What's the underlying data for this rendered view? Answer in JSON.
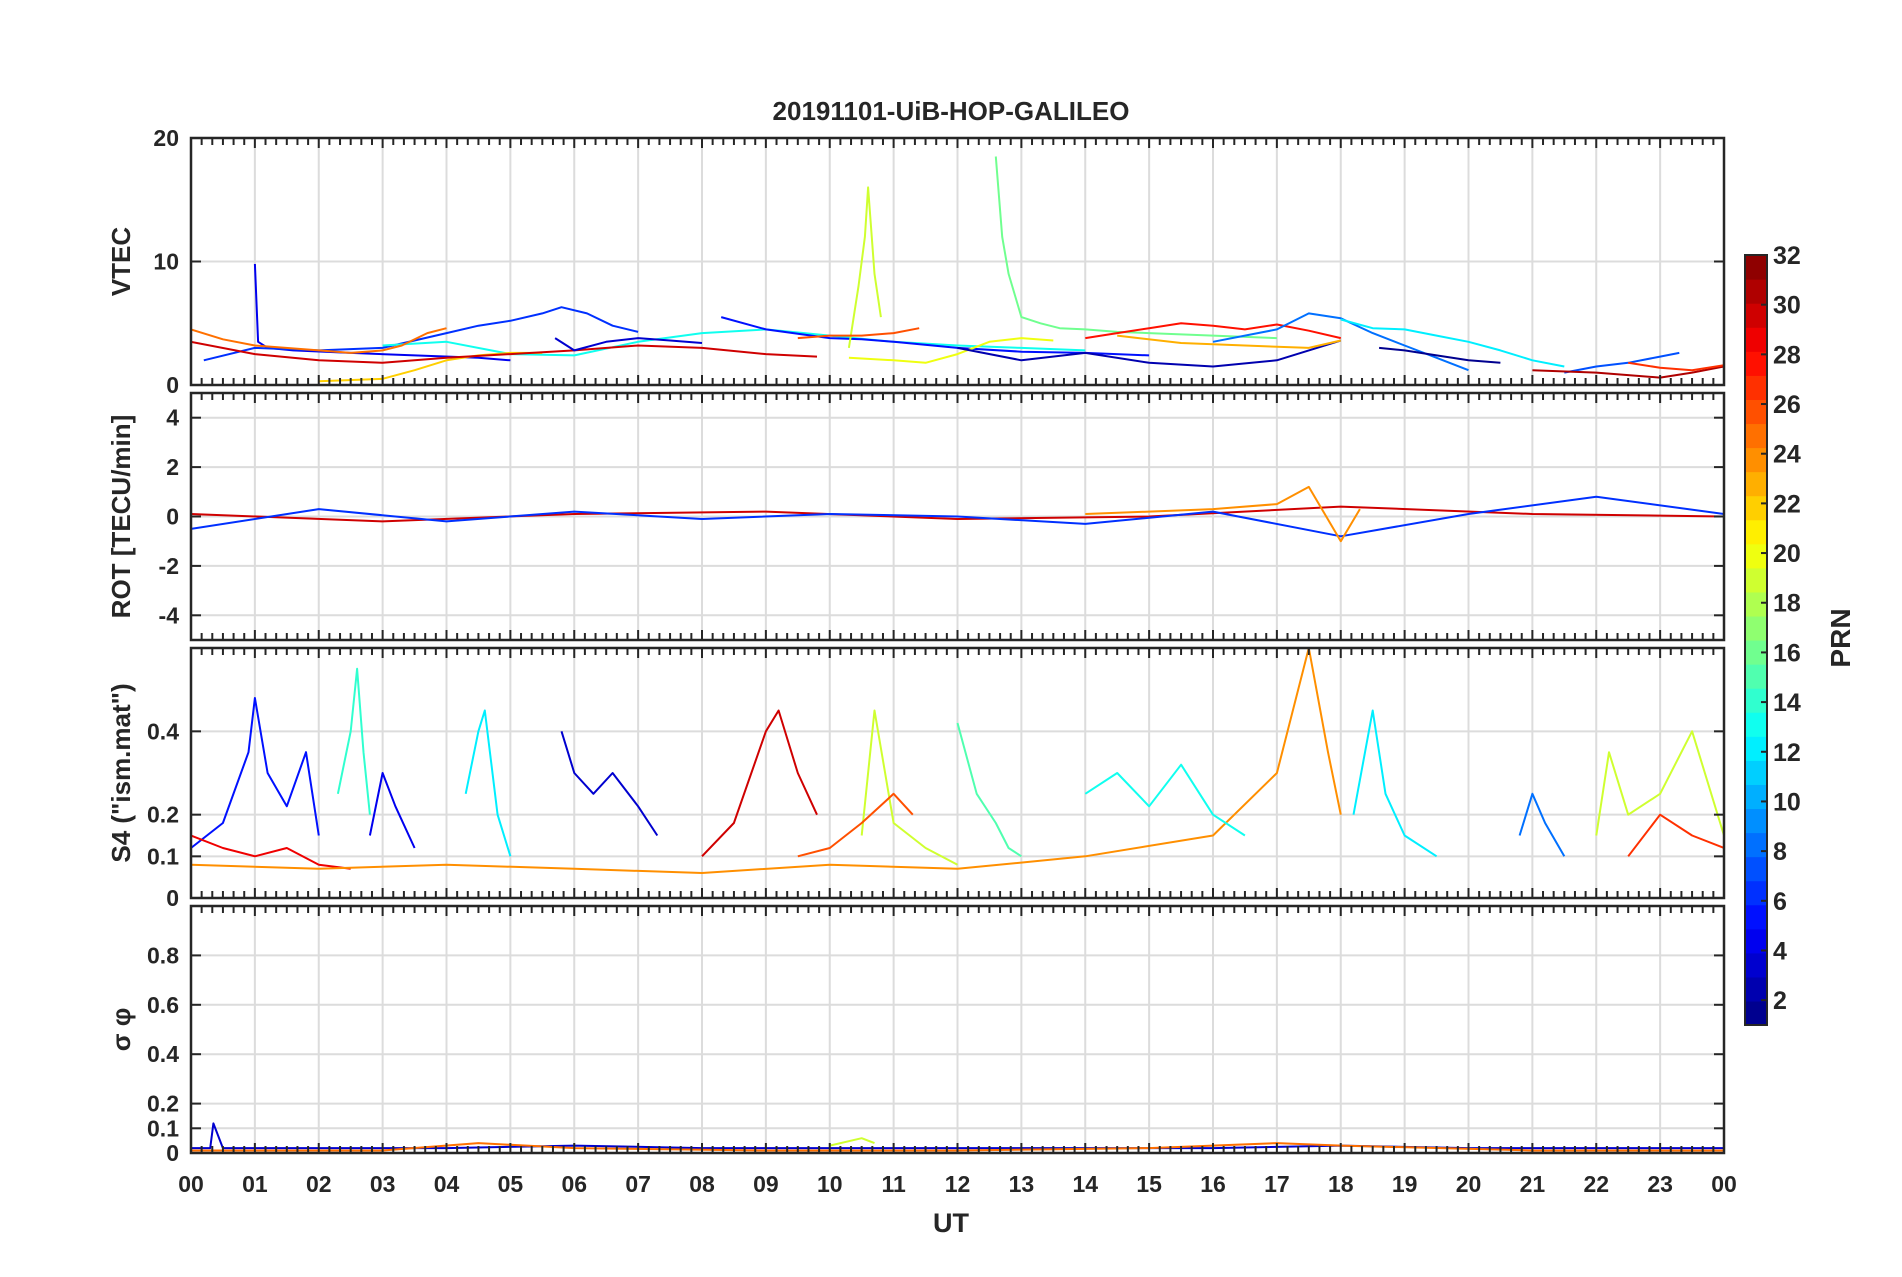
{
  "figure": {
    "title": "20191101-UiB-HOP-GALILEO",
    "xlabel": "UT",
    "x_tick_labels": [
      "00",
      "01",
      "02",
      "03",
      "04",
      "05",
      "06",
      "07",
      "08",
      "09",
      "10",
      "11",
      "12",
      "13",
      "14",
      "15",
      "16",
      "17",
      "18",
      "19",
      "20",
      "21",
      "22",
      "23",
      "00"
    ]
  },
  "colorbar": {
    "label": "PRN",
    "colormap": "jet",
    "range": [
      1,
      32
    ],
    "tick_labels": [
      "2",
      "4",
      "6",
      "8",
      "10",
      "12",
      "14",
      "16",
      "18",
      "20",
      "22",
      "24",
      "26",
      "28",
      "30",
      "32"
    ]
  },
  "chart_data": [
    {
      "type": "line",
      "panel": "VTEC",
      "ylabel": "VTEC",
      "xlim": [
        0,
        24
      ],
      "ylim": [
        0,
        20
      ],
      "y_ticks": [
        0,
        10,
        20
      ],
      "y_tick_labels": [
        "0",
        "10",
        "20"
      ],
      "grid": true,
      "series": [
        {
          "prn": 4,
          "x": [
            1.0,
            1.05,
            1.2,
            1.6,
            2.5,
            3.5,
            4.5,
            5.0
          ],
          "y": [
            9.8,
            3.5,
            3.0,
            2.8,
            2.6,
            2.4,
            2.2,
            2.0
          ]
        },
        {
          "prn": 6,
          "x": [
            0.2,
            1.0,
            2.0,
            3.0,
            4.0,
            4.5,
            5.0,
            5.5,
            5.8,
            6.2,
            6.6,
            7.0
          ],
          "y": [
            2.0,
            3.0,
            2.8,
            3.0,
            4.2,
            4.8,
            5.2,
            5.8,
            6.3,
            5.8,
            4.8,
            4.3
          ]
        },
        {
          "prn": 13,
          "x": [
            3.0,
            4.0,
            5.0,
            6.0,
            7.0,
            8.0,
            9.0,
            10.0,
            11.0,
            12.0,
            13.0,
            14.0
          ],
          "y": [
            3.2,
            3.5,
            2.5,
            2.4,
            3.5,
            4.2,
            4.5,
            4.0,
            3.5,
            3.2,
            3.0,
            2.8
          ]
        },
        {
          "prn": 25,
          "x": [
            0.0,
            0.5,
            1.0,
            2.0,
            2.5,
            3.0,
            3.3,
            3.7,
            4.0
          ],
          "y": [
            4.5,
            3.7,
            3.2,
            2.8,
            2.6,
            2.8,
            3.2,
            4.2,
            4.6
          ]
        },
        {
          "prn": 22,
          "x": [
            2.0,
            3.0,
            3.5,
            4.0,
            4.5,
            5.0,
            5.5
          ],
          "y": [
            0.3,
            0.5,
            1.2,
            2.0,
            2.4,
            2.6,
            2.6
          ]
        },
        {
          "prn": 30,
          "x": [
            0.0,
            1.0,
            2.0,
            3.0,
            4.0,
            5.0,
            6.0,
            7.0,
            8.0,
            9.0,
            9.8
          ],
          "y": [
            3.5,
            2.5,
            2.0,
            1.8,
            2.2,
            2.5,
            2.8,
            3.2,
            3.0,
            2.5,
            2.3
          ]
        },
        {
          "prn": 3,
          "x": [
            5.7,
            6.0,
            6.5,
            7.0,
            7.5,
            8.0
          ],
          "y": [
            3.8,
            2.8,
            3.5,
            3.8,
            3.6,
            3.4
          ]
        },
        {
          "prn": 5,
          "x": [
            8.3,
            9.0,
            10.0,
            10.5,
            11.0,
            12.0,
            13.0,
            14.0,
            15.0
          ],
          "y": [
            5.5,
            4.5,
            3.8,
            3.7,
            3.5,
            3.0,
            2.7,
            2.6,
            2.4
          ]
        },
        {
          "prn": 19,
          "x": [
            10.3,
            10.45,
            10.55,
            10.6,
            10.7,
            10.8
          ],
          "y": [
            3.0,
            8.0,
            12.0,
            16.0,
            9.0,
            5.5
          ]
        },
        {
          "prn": 20,
          "x": [
            10.3,
            11.0,
            11.5,
            12.0,
            12.5,
            13.0,
            13.5
          ],
          "y": [
            2.2,
            2.0,
            1.8,
            2.5,
            3.5,
            3.8,
            3.6
          ]
        },
        {
          "prn": 26,
          "x": [
            9.5,
            10.0,
            10.5,
            11.0,
            11.4
          ],
          "y": [
            3.8,
            4.0,
            4.0,
            4.2,
            4.6
          ]
        },
        {
          "prn": 16,
          "x": [
            12.6,
            12.7,
            12.8,
            13.0,
            13.3,
            13.6,
            14.0,
            14.5,
            15.0,
            16.0,
            17.0
          ],
          "y": [
            18.5,
            12.0,
            9.0,
            5.5,
            5.0,
            4.6,
            4.5,
            4.3,
            4.2,
            4.0,
            3.8
          ]
        },
        {
          "prn": 2,
          "x": [
            12.0,
            13.0,
            14.0,
            15.0,
            16.0,
            17.0,
            17.5,
            18.0
          ],
          "y": [
            3.0,
            2.0,
            2.6,
            1.8,
            1.5,
            2.0,
            2.8,
            3.6
          ]
        },
        {
          "prn": 28,
          "x": [
            14.0,
            14.5,
            15.0,
            15.5,
            16.0,
            16.5,
            17.0,
            17.5,
            18.0
          ],
          "y": [
            3.8,
            4.2,
            4.6,
            5.0,
            4.8,
            4.5,
            4.9,
            4.4,
            3.8
          ]
        },
        {
          "prn": 23,
          "x": [
            14.5,
            15.5,
            16.5,
            17.5,
            18.0
          ],
          "y": [
            4.0,
            3.4,
            3.2,
            3.0,
            3.6
          ]
        },
        {
          "prn": 8,
          "x": [
            16.0,
            17.0,
            17.5,
            18.0,
            18.5,
            19.0,
            19.5,
            20.0
          ],
          "y": [
            3.5,
            4.5,
            5.8,
            5.4,
            4.2,
            3.2,
            2.2,
            1.2
          ]
        },
        {
          "prn": 12,
          "x": [
            18.0,
            18.5,
            19.0,
            19.5,
            20.0,
            20.5,
            21.0,
            21.5
          ],
          "y": [
            5.3,
            4.6,
            4.5,
            4.0,
            3.5,
            2.8,
            2.0,
            1.5
          ]
        },
        {
          "prn": 1,
          "x": [
            18.6,
            19.0,
            19.5,
            20.0,
            20.5
          ],
          "y": [
            3.0,
            2.8,
            2.4,
            2.0,
            1.8
          ]
        },
        {
          "prn": 7,
          "x": [
            21.5,
            22.0,
            22.5,
            23.0,
            23.3
          ],
          "y": [
            1.0,
            1.5,
            1.8,
            2.3,
            2.6
          ]
        },
        {
          "prn": 31,
          "x": [
            21.0,
            22.0,
            22.5,
            23.0,
            23.5,
            24.0
          ],
          "y": [
            1.2,
            1.0,
            0.8,
            0.6,
            1.0,
            1.5
          ]
        },
        {
          "prn": 27,
          "x": [
            22.5,
            23.0,
            23.5,
            24.0
          ],
          "y": [
            1.8,
            1.4,
            1.2,
            1.6
          ]
        }
      ]
    },
    {
      "type": "line",
      "panel": "ROT",
      "ylabel": "ROT [TECU/min]",
      "xlim": [
        0,
        24
      ],
      "ylim": [
        -5,
        5
      ],
      "y_ticks": [
        -4,
        -2,
        0,
        2,
        4
      ],
      "y_tick_labels": [
        "-4",
        "-2",
        "0",
        "2",
        "4"
      ],
      "grid": true,
      "series": [
        {
          "prn": 30,
          "x": [
            0,
            3,
            6,
            9,
            12,
            15,
            18,
            21,
            24
          ],
          "y": [
            0.1,
            -0.2,
            0.1,
            0.2,
            -0.1,
            0.0,
            0.4,
            0.1,
            0.0
          ]
        },
        {
          "prn": 6,
          "x": [
            0,
            2,
            4,
            6,
            8,
            10,
            12,
            14,
            16,
            18,
            20,
            22,
            24
          ],
          "y": [
            -0.5,
            0.3,
            -0.2,
            0.2,
            -0.1,
            0.1,
            0.0,
            -0.3,
            0.2,
            -0.8,
            0.1,
            0.8,
            0.1
          ]
        },
        {
          "prn": 24,
          "x": [
            14,
            15,
            16,
            17,
            17.5,
            18,
            18.3
          ],
          "y": [
            0.1,
            0.2,
            0.3,
            0.5,
            1.2,
            -1.0,
            0.3
          ]
        }
      ]
    },
    {
      "type": "line",
      "panel": "S4",
      "ylabel": "S4 (\"ism.mat\")",
      "xlim": [
        0,
        24
      ],
      "ylim": [
        0,
        0.6
      ],
      "y_ticks": [
        0,
        0.1,
        0.2,
        0.4
      ],
      "y_tick_labels": [
        "0",
        "0.1",
        "0.2",
        "0.4"
      ],
      "grid": true,
      "series": [
        {
          "prn": 5,
          "x": [
            0.0,
            0.5,
            0.9,
            1.0,
            1.2,
            1.5,
            1.8,
            2.0
          ],
          "y": [
            0.12,
            0.18,
            0.35,
            0.48,
            0.3,
            0.22,
            0.35,
            0.15
          ]
        },
        {
          "prn": 29,
          "x": [
            0.0,
            0.5,
            1.0,
            1.5,
            2.0,
            2.5
          ],
          "y": [
            0.15,
            0.12,
            0.1,
            0.12,
            0.08,
            0.07
          ]
        },
        {
          "prn": 14,
          "x": [
            2.3,
            2.5,
            2.6,
            2.7,
            2.8
          ],
          "y": [
            0.25,
            0.4,
            0.55,
            0.35,
            0.2
          ]
        },
        {
          "prn": 4,
          "x": [
            2.8,
            3.0,
            3.2,
            3.5
          ],
          "y": [
            0.15,
            0.3,
            0.22,
            0.12
          ]
        },
        {
          "prn": 12,
          "x": [
            4.3,
            4.5,
            4.6,
            4.8,
            5.0
          ],
          "y": [
            0.25,
            0.4,
            0.45,
            0.2,
            0.1
          ]
        },
        {
          "prn": 3,
          "x": [
            5.8,
            6.0,
            6.3,
            6.6,
            7.0,
            7.3
          ],
          "y": [
            0.4,
            0.3,
            0.25,
            0.3,
            0.22,
            0.15
          ]
        },
        {
          "prn": 30,
          "x": [
            8.0,
            8.5,
            9.0,
            9.2,
            9.5,
            9.8
          ],
          "y": [
            0.1,
            0.18,
            0.4,
            0.45,
            0.3,
            0.2
          ]
        },
        {
          "prn": 24,
          "x": [
            0.0,
            2.0,
            4.0,
            6.0,
            8.0,
            10.0,
            12.0,
            14.0,
            16.0,
            17.0,
            17.5,
            17.8,
            18.0
          ],
          "y": [
            0.08,
            0.07,
            0.08,
            0.07,
            0.06,
            0.08,
            0.07,
            0.1,
            0.15,
            0.3,
            0.6,
            0.35,
            0.2
          ]
        },
        {
          "prn": 19,
          "x": [
            10.5,
            10.6,
            10.7,
            11.0,
            11.5,
            12.0
          ],
          "y": [
            0.15,
            0.3,
            0.45,
            0.18,
            0.12,
            0.08
          ]
        },
        {
          "prn": 26,
          "x": [
            9.5,
            10.0,
            10.5,
            11.0,
            11.3
          ],
          "y": [
            0.1,
            0.12,
            0.18,
            0.25,
            0.2
          ]
        },
        {
          "prn": 15,
          "x": [
            12.0,
            12.3,
            12.6,
            12.8,
            13.0
          ],
          "y": [
            0.42,
            0.25,
            0.18,
            0.12,
            0.1
          ]
        },
        {
          "prn": 13,
          "x": [
            14.0,
            14.5,
            15.0,
            15.5,
            16.0,
            16.5
          ],
          "y": [
            0.25,
            0.3,
            0.22,
            0.32,
            0.2,
            0.15
          ]
        },
        {
          "prn": 12,
          "x": [
            18.2,
            18.5,
            18.7,
            19.0,
            19.5
          ],
          "y": [
            0.2,
            0.45,
            0.25,
            0.15,
            0.1
          ]
        },
        {
          "prn": 8,
          "x": [
            20.8,
            21.0,
            21.2,
            21.5
          ],
          "y": [
            0.15,
            0.25,
            0.18,
            0.1
          ]
        },
        {
          "prn": 19,
          "x": [
            22.0,
            22.2,
            22.5,
            23.0,
            23.5,
            24.0
          ],
          "y": [
            0.15,
            0.35,
            0.2,
            0.25,
            0.4,
            0.15
          ]
        },
        {
          "prn": 27,
          "x": [
            22.5,
            23.0,
            23.5,
            24.0
          ],
          "y": [
            0.1,
            0.2,
            0.15,
            0.12
          ]
        }
      ]
    },
    {
      "type": "line",
      "panel": "SigmaPhi",
      "ylabel": "σ φ",
      "xlim": [
        0,
        24
      ],
      "ylim": [
        0,
        1.0
      ],
      "y_ticks": [
        0,
        0.1,
        0.2,
        0.4,
        0.6,
        0.8
      ],
      "y_tick_labels": [
        "0",
        "0.1",
        "0.2",
        "0.4",
        "0.6",
        "0.8"
      ],
      "grid": true,
      "series": [
        {
          "prn": 3,
          "x": [
            0,
            0.3,
            0.35,
            0.5,
            2,
            4,
            6,
            8,
            10,
            12,
            14,
            16,
            18,
            20,
            22,
            24
          ],
          "y": [
            0.02,
            0.02,
            0.12,
            0.02,
            0.02,
            0.02,
            0.03,
            0.02,
            0.02,
            0.02,
            0.02,
            0.02,
            0.03,
            0.02,
            0.02,
            0.02
          ]
        },
        {
          "prn": 25,
          "x": [
            0,
            3,
            4.5,
            6,
            9,
            12,
            15,
            17,
            18,
            21,
            24
          ],
          "y": [
            0.01,
            0.01,
            0.04,
            0.02,
            0.01,
            0.01,
            0.02,
            0.04,
            0.03,
            0.01,
            0.01
          ]
        },
        {
          "prn": 19,
          "x": [
            10.0,
            10.5,
            10.7
          ],
          "y": [
            0.03,
            0.06,
            0.04
          ]
        }
      ]
    }
  ]
}
